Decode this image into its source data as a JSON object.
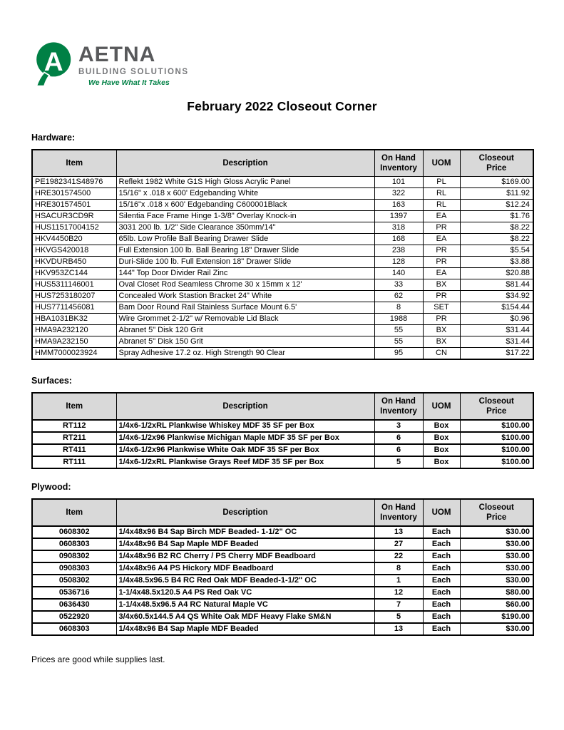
{
  "logo": {
    "brand": "AETNA",
    "division": "BUILDING SOLUTIONS",
    "tagline": "We Have What It Takes",
    "mark_letter": "A",
    "colors": {
      "green": "#008045",
      "dark_gray": "#58595b",
      "mid_gray": "#77787b"
    }
  },
  "page_title": "February 2022 Closeout Corner",
  "header_bg": "#d9d9d9",
  "table_headers": {
    "item": "Item",
    "description": "Description",
    "on_hand_line1": "On Hand",
    "on_hand_line2": "Inventory",
    "uom": "UOM",
    "price_line1": "Closeout",
    "price_line2": "Price"
  },
  "sections": [
    {
      "heading": "Hardware:",
      "rows": [
        {
          "item": "PE1982341S48976",
          "description": "Reflekt 1982 White G1S High Gloss Acrylic Panel",
          "inventory": "101",
          "uom": "PL",
          "price": "$169.00"
        },
        {
          "item": "HRE301574500",
          "description": "15/16\" x .018 x 600' Edgebanding White",
          "inventory": "322",
          "uom": "RL",
          "price": "$11.92"
        },
        {
          "item": "HRE301574501",
          "description": "15/16\"x .018 x 600' Edgebanding C600001Black",
          "inventory": "163",
          "uom": "RL",
          "price": "$12.24"
        },
        {
          "item": "HSACUR3CD9R",
          "description": "Silentia Face Frame Hinge 1-3/8\" Overlay Knock-in",
          "inventory": "1397",
          "uom": "EA",
          "price": "$1.76"
        },
        {
          "item": "HUS11517004152",
          "description": "3031 200 lb. 1/2\" Side Clearance 350mm/14\"",
          "inventory": "318",
          "uom": "PR",
          "price": "$8.22"
        },
        {
          "item": "HKV4450B20",
          "description": "65lb. Low Profile Ball Bearing Drawer Slide",
          "inventory": "168",
          "uom": "EA",
          "price": "$8.22"
        },
        {
          "item": "HKVGS420018",
          "description": "Full Extension 100 lb. Ball Bearing 18\" Drawer Slide",
          "inventory": "238",
          "uom": "PR",
          "price": "$5.54"
        },
        {
          "item": "HKVDURB450",
          "description": "Duri-Slide 100 lb. Full  Extension 18\" Drawer Slide",
          "inventory": "128",
          "uom": "PR",
          "price": "$3.88"
        },
        {
          "item": "HKV953ZC144",
          "description": "144\" Top Door Divider Rail Zinc",
          "inventory": "140",
          "uom": "EA",
          "price": "$20.88"
        },
        {
          "item": "HUS5311146001",
          "description": "Oval Closet Rod Seamless Chrome 30 x 15mm x 12'",
          "inventory": "33",
          "uom": "BX",
          "price": "$81.44"
        },
        {
          "item": "HUS7253180207",
          "description": "Concealed Work Stastion Bracket 24\" White",
          "inventory": "62",
          "uom": "PR",
          "price": "$34.92"
        },
        {
          "item": "HUS7711456081",
          "description": "Bam Door Round Rail Stainless Surface Mount 6.5'",
          "inventory": "8",
          "uom": "SET",
          "price": "$154.44"
        },
        {
          "item": "HBA1031BK32",
          "description": "Wire Grommet 2-1/2\" w/ Removable Lid Black",
          "inventory": "1988",
          "uom": "PR",
          "price": "$0.96"
        },
        {
          "item": "HMA9A232120",
          "description": "Abranet 5\" Disk 120 Grit",
          "inventory": "55",
          "uom": "BX",
          "price": "$31.44"
        },
        {
          "item": "HMA9A232150",
          "description": "Abranet 5\" Disk 150 Grit",
          "inventory": "55",
          "uom": "BX",
          "price": "$31.44"
        },
        {
          "item": "HMM7000023924",
          "description": "Spray Adhesive 17.2 oz. High Strength 90 Clear",
          "inventory": "95",
          "uom": "CN",
          "price": "$17.22"
        }
      ]
    },
    {
      "heading": "Surfaces:",
      "rows": [
        {
          "item": "RT112",
          "description": "1/4x6-1/2xRL Plankwise Whiskey MDF 35 SF per Box",
          "inventory": "3",
          "uom": "Box",
          "price": "$100.00"
        },
        {
          "item": "RT211",
          "description": "1/4x6-1/2x96 Plankwise Michigan Maple MDF  35 SF per Box",
          "inventory": "6",
          "uom": "Box",
          "price": "$100.00"
        },
        {
          "item": "RT411",
          "description": "1/4x6-1/2x96 Plankwise White Oak MDF 35 SF per Box",
          "inventory": "6",
          "uom": "Box",
          "price": "$100.00"
        },
        {
          "item": "RT111",
          "description": "1/4x6-1/2xRL Plankwise Grays Reef MDF 35 SF per Box",
          "inventory": "5",
          "uom": "Box",
          "price": "$100.00"
        }
      ]
    },
    {
      "heading": "Plywood:",
      "rows": [
        {
          "item": "0608302",
          "description": "1/4x48x96 B4 Sap Birch MDF Beaded- 1-1/2\" OC",
          "inventory": "13",
          "uom": "Each",
          "price": "$30.00"
        },
        {
          "item": "0608303",
          "description": "1/4x48x96 B4 Sap Maple MDF Beaded",
          "inventory": "27",
          "uom": "Each",
          "price": "$30.00"
        },
        {
          "item": "0908302",
          "description": "1/4x48x96 B2 RC Cherry / PS Cherry MDF Beadboard",
          "inventory": "22",
          "uom": "Each",
          "price": "$30.00"
        },
        {
          "item": "0908303",
          "description": "1/4x48x96 A4 PS Hickory MDF Beadboard",
          "inventory": "8",
          "uom": "Each",
          "price": "$30.00"
        },
        {
          "item": "0508302",
          "description": "1/4x48.5x96.5 B4 RC Red Oak MDF Beaded-1-1/2\" OC",
          "inventory": "1",
          "uom": "Each",
          "price": "$30.00"
        },
        {
          "item": "0536716",
          "description": "1-1/4x48.5x120.5 A4 PS Red Oak VC",
          "inventory": "12",
          "uom": "Each",
          "price": "$80.00"
        },
        {
          "item": "0636430",
          "description": "1-1/4x48.5x96.5 A4 RC Natural Maple VC",
          "inventory": "7",
          "uom": "Each",
          "price": "$60.00"
        },
        {
          "item": "0522920",
          "description": "3/4x60.5x144.5 A4 QS White Oak MDF Heavy Flake SM&N",
          "inventory": "5",
          "uom": "Each",
          "price": "$190.00"
        },
        {
          "item": "0608303",
          "description": "1/4x48x96 B4 Sap Maple MDF Beaded",
          "inventory": "13",
          "uom": "Each",
          "price": "$30.00"
        }
      ]
    }
  ],
  "footer_note": "Prices are good while supplies last."
}
